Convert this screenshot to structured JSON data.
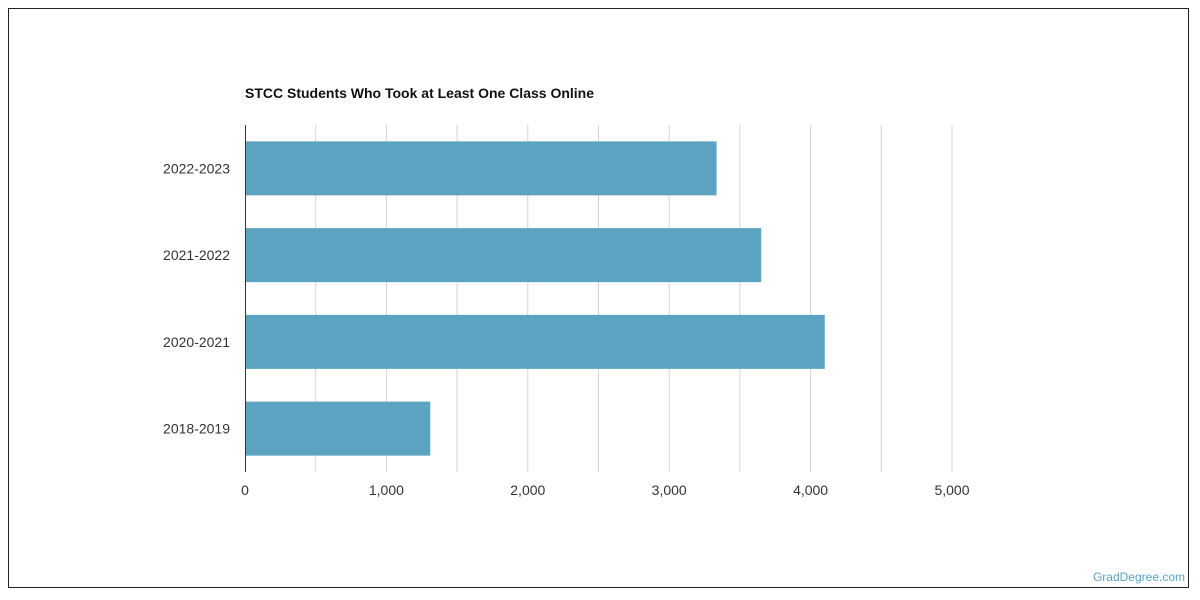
{
  "chart_data": {
    "type": "bar",
    "orientation": "horizontal",
    "title": "STCC Students Who Took at Least One Class Online",
    "xlabel": "",
    "ylabel": "",
    "categories": [
      "2022-2023",
      "2021-2022",
      "2020-2021",
      "2018-2019"
    ],
    "values": [
      3335,
      3651,
      4100,
      1310
    ],
    "xlim": [
      0,
      5000
    ],
    "xticks": [
      0,
      1000,
      2000,
      3000,
      4000,
      5000
    ],
    "xtick_labels": [
      "0",
      "1,000",
      "2,000",
      "3,000",
      "4,000",
      "5,000"
    ],
    "grid": "vertical",
    "bar_color": "#5ba3c0",
    "grid_color": "#d3d3d3",
    "axis_color": "#333333"
  },
  "watermark": "GradDegree.com"
}
